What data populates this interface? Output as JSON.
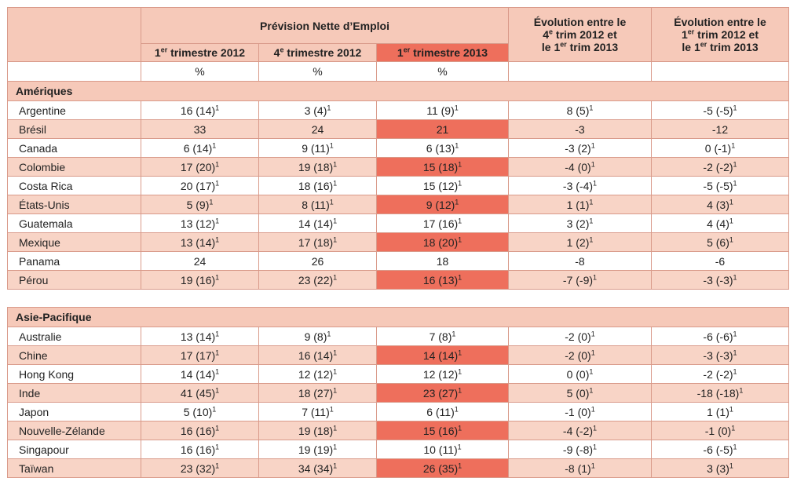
{
  "header": {
    "forecast_title": "Prévision Nette d’Emploi",
    "q1_2012": {
      "prefix": "1",
      "sup": "er",
      "text": " trimestre 2012"
    },
    "q4_2012": {
      "prefix": "4",
      "sup": "e",
      "text": " trimestre 2012"
    },
    "q1_2013": {
      "prefix": "1",
      "sup": "er",
      "text": " trimestre 2013"
    },
    "evo1": {
      "line1": "Évolution entre le",
      "l2a": "4",
      "l2sup": "e",
      "l2b": " trim 2012 et",
      "l3a": "le 1",
      "l3sup": "er",
      "l3b": " trim 2013"
    },
    "evo2": {
      "line1": "Évolution entre le",
      "l2a": "1",
      "l2sup": "er",
      "l2b": " trim 2012 et",
      "l3a": "le 1",
      "l3sup": "er",
      "l3b": " trim 2013"
    },
    "pct": "%"
  },
  "sections": [
    {
      "title": "Amériques",
      "rows": [
        {
          "country": "Argentine",
          "c1": "16 (14)",
          "s1": "1",
          "c2": "3 (4)",
          "s2": "1",
          "c3": "11 (9)",
          "s3": "1",
          "c4": "8 (5)",
          "s4": "1",
          "c5": "-5 (-5)",
          "s5": "1"
        },
        {
          "country": "Brésil",
          "c1": "33",
          "s1": "",
          "c2": "24",
          "s2": "",
          "c3": "21",
          "s3": "",
          "c4": "-3",
          "s4": "",
          "c5": "-12",
          "s5": ""
        },
        {
          "country": "Canada",
          "c1": "6 (14)",
          "s1": "1",
          "c2": "9 (11)",
          "s2": "1",
          "c3": "6 (13)",
          "s3": "1",
          "c4": "-3 (2)",
          "s4": "1",
          "c5": "0 (-1)",
          "s5": "1"
        },
        {
          "country": "Colombie",
          "c1": "17 (20)",
          "s1": "1",
          "c2": "19 (18)",
          "s2": "1",
          "c3": "15 (18)",
          "s3": "1",
          "c4": "-4 (0)",
          "s4": "1",
          "c5": "-2 (-2)",
          "s5": "1"
        },
        {
          "country": "Costa Rica",
          "c1": "20 (17)",
          "s1": "1",
          "c2": "18 (16)",
          "s2": "1",
          "c3": "15 (12)",
          "s3": "1",
          "c4": "-3 (-4)",
          "s4": "1",
          "c5": "-5 (-5)",
          "s5": "1"
        },
        {
          "country": "États-Unis",
          "c1": "5 (9)",
          "s1": "1",
          "c2": "8 (11)",
          "s2": "1",
          "c3": "9 (12)",
          "s3": "1",
          "c4": "1 (1)",
          "s4": "1",
          "c5": "4 (3)",
          "s5": "1"
        },
        {
          "country": "Guatemala",
          "c1": "13 (12)",
          "s1": "1",
          "c2": "14 (14)",
          "s2": "1",
          "c3": "17 (16)",
          "s3": "1",
          "c4": "3 (2)",
          "s4": "1",
          "c5": "4 (4)",
          "s5": "1"
        },
        {
          "country": "Mexique",
          "c1": "13 (14)",
          "s1": "1",
          "c2": "17 (18)",
          "s2": "1",
          "c3": "18 (20)",
          "s3": "1",
          "c4": "1 (2)",
          "s4": "1",
          "c5": "5 (6)",
          "s5": "1"
        },
        {
          "country": "Panama",
          "c1": "24",
          "s1": "",
          "c2": "26",
          "s2": "",
          "c3": "18",
          "s3": "",
          "c4": "-8",
          "s4": "",
          "c5": "-6",
          "s5": ""
        },
        {
          "country": "Pérou",
          "c1": "19 (16)",
          "s1": "1",
          "c2": "23 (22)",
          "s2": "1",
          "c3": "16 (13)",
          "s3": "1",
          "c4": "-7 (-9)",
          "s4": "1",
          "c5": "-3 (-3)",
          "s5": "1"
        }
      ]
    },
    {
      "title": "Asie-Pacifique",
      "rows": [
        {
          "country": "Australie",
          "c1": "13 (14)",
          "s1": "1",
          "c2": "9 (8)",
          "s2": "1",
          "c3": "7 (8)",
          "s3": "1",
          "c4": "-2 (0)",
          "s4": "1",
          "c5": "-6 (-6)",
          "s5": "1"
        },
        {
          "country": "Chine",
          "c1": "17 (17)",
          "s1": "1",
          "c2": "16 (14)",
          "s2": "1",
          "c3": "14 (14)",
          "s3": "1",
          "c4": "-2 (0)",
          "s4": "1",
          "c5": "-3 (-3)",
          "s5": "1"
        },
        {
          "country": "Hong Kong",
          "c1": "14 (14)",
          "s1": "1",
          "c2": "12 (12)",
          "s2": "1",
          "c3": "12 (12)",
          "s3": "1",
          "c4": "0 (0)",
          "s4": "1",
          "c5": "-2 (-2)",
          "s5": "1"
        },
        {
          "country": "Inde",
          "c1": "41 (45)",
          "s1": "1",
          "c2": "18 (27)",
          "s2": "1",
          "c3": "23 (27)",
          "s3": "1",
          "c4": "5 (0)",
          "s4": "1",
          "c5": "-18 (-18)",
          "s5": "1"
        },
        {
          "country": "Japon",
          "c1": "5 (10)",
          "s1": "1",
          "c2": "7 (11)",
          "s2": "1",
          "c3": "6 (11)",
          "s3": "1",
          "c4": "-1 (0)",
          "s4": "1",
          "c5": "1 (1)",
          "s5": "1"
        },
        {
          "country": "Nouvelle-Zélande",
          "c1": "16 (16)",
          "s1": "1",
          "c2": "19 (18)",
          "s2": "1",
          "c3": "15 (16)",
          "s3": "1",
          "c4": "-4 (-2)",
          "s4": "1",
          "c5": "-1 (0)",
          "s5": "1"
        },
        {
          "country": "Singapour",
          "c1": "16 (16)",
          "s1": "1",
          "c2": "19 (19)",
          "s2": "1",
          "c3": "10 (11)",
          "s3": "1",
          "c4": "-9 (-8)",
          "s4": "1",
          "c5": "-6 (-5)",
          "s5": "1"
        },
        {
          "country": "Taïwan",
          "c1": "23 (32)",
          "s1": "1",
          "c2": "34 (34)",
          "s2": "1",
          "c3": "26 (35)",
          "s3": "1",
          "c4": "-8 (1)",
          "s4": "1",
          "c5": "3 (3)",
          "s5": "1"
        }
      ]
    }
  ]
}
